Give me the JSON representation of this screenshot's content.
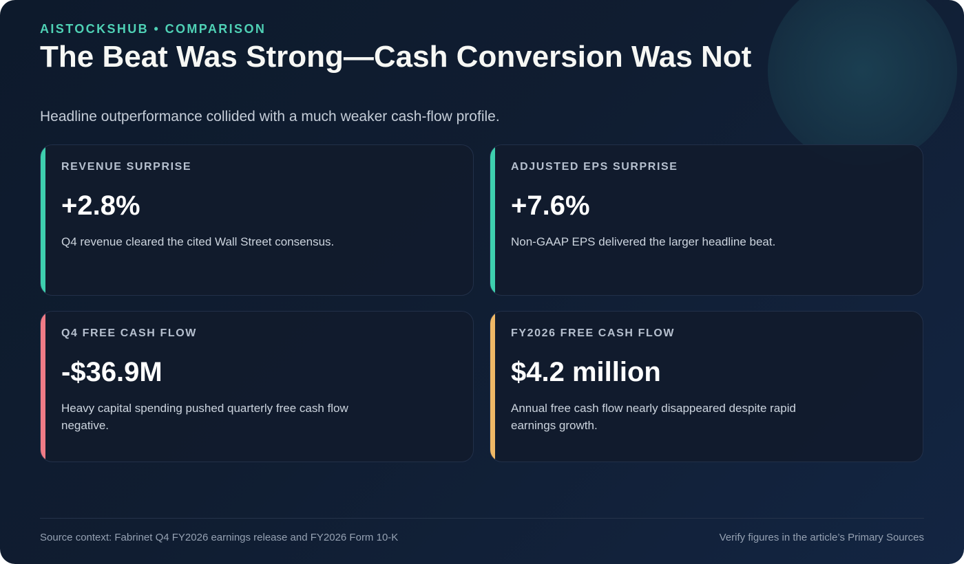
{
  "header": {
    "eyebrow": "AISTOCKSHUB • COMPARISON",
    "title": "The Beat Was Strong—Cash Conversion Was Not",
    "subtitle": "Headline outperformance collided with a much weaker cash-flow profile."
  },
  "cards": [
    {
      "label": "REVENUE SURPRISE",
      "value": "+2.8%",
      "description": "Q4 revenue cleared the cited Wall Street consensus.",
      "accent_color": "#3ecfae"
    },
    {
      "label": "ADJUSTED EPS SURPRISE",
      "value": "+7.6%",
      "description": "Non-GAAP EPS delivered the larger headline beat.",
      "accent_color": "#3ecfae"
    },
    {
      "label": "Q4 FREE CASH FLOW",
      "value": "-$36.9M",
      "description": "Heavy capital spending pushed quarterly free cash flow negative.",
      "accent_color": "#ef7b86"
    },
    {
      "label": "FY2026 FREE CASH FLOW",
      "value": "$4.2 million",
      "description": "Annual free cash flow nearly disappeared despite rapid earnings growth.",
      "accent_color": "#efb866"
    }
  ],
  "footer": {
    "source": "Source context: Fabrinet Q4 FY2026 earnings release and FY2026 Form 10-K",
    "verify": "Verify figures in the article’s Primary Sources"
  },
  "colors": {
    "brand_accent": "#4fd1b5",
    "positive": "#3ecfae",
    "negative": "#ef7b86",
    "warning": "#efb866",
    "background": "#0f1c30"
  }
}
